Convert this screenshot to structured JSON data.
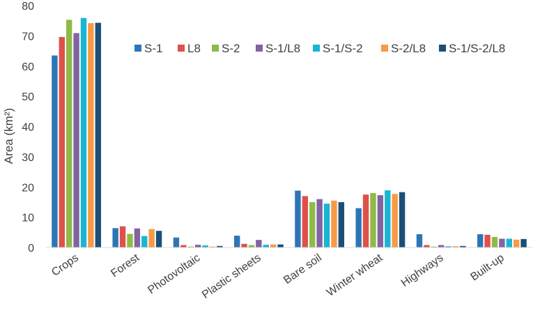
{
  "chart_data": {
    "type": "bar",
    "title": "",
    "xlabel": "",
    "ylabel": "Area (km²)",
    "ylim": [
      0,
      80
    ],
    "yticks": [
      0,
      10,
      20,
      30,
      40,
      50,
      60,
      70,
      80
    ],
    "grid": false,
    "legend_position": "top-right",
    "categories": [
      "Crops",
      "Forest",
      "Photovoltaic",
      "Plastic sheets",
      "Bare soil",
      "Winter wheat",
      "Highways",
      "Built-up"
    ],
    "series": [
      {
        "name": "S-1",
        "color": "#2e75b6",
        "values": [
          63.5,
          6.4,
          3.3,
          3.9,
          18.8,
          13.0,
          4.4,
          4.4
        ]
      },
      {
        "name": "L8",
        "color": "#e0504b",
        "values": [
          69.6,
          7.0,
          0.8,
          1.2,
          17.0,
          17.5,
          0.8,
          4.2
        ]
      },
      {
        "name": "S-2",
        "color": "#8fba47",
        "values": [
          75.3,
          4.5,
          0.3,
          0.8,
          15.0,
          18.0,
          0.3,
          3.5
        ]
      },
      {
        "name": "S-1/L8",
        "color": "#8064a2",
        "values": [
          70.9,
          6.3,
          0.9,
          2.5,
          16.0,
          17.3,
          0.8,
          2.9
        ]
      },
      {
        "name": "S-1/S-2",
        "color": "#1ab5d3",
        "values": [
          75.9,
          3.8,
          0.7,
          0.9,
          14.5,
          18.9,
          0.4,
          2.9
        ]
      },
      {
        "name": "S-2/L8",
        "color": "#f79a46",
        "values": [
          74.2,
          6.1,
          0.3,
          1.0,
          15.5,
          17.7,
          0.4,
          2.6
        ]
      },
      {
        "name": "S-1/S-2/L8",
        "color": "#1b4f78",
        "values": [
          74.3,
          5.5,
          0.5,
          1.0,
          15.0,
          18.3,
          0.5,
          2.8
        ]
      }
    ]
  }
}
